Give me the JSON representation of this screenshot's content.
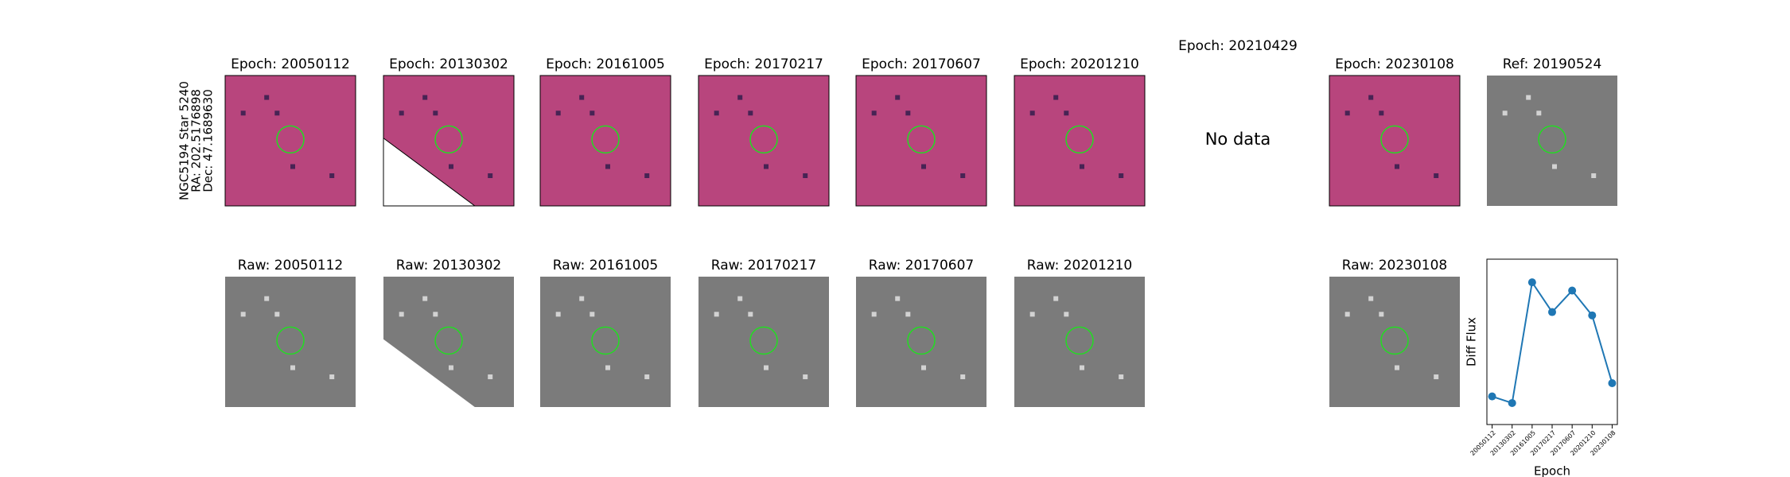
{
  "star": {
    "name": "NGC5194 Star 5240",
    "ra": "RA: 202.5176898",
    "dec": "Dec: 47.1689630"
  },
  "panels_top": [
    {
      "title": "Epoch: 20050112",
      "color": "#b8457d"
    },
    {
      "title": "Epoch: 20130302",
      "color": "#b8457d"
    },
    {
      "title": "Epoch: 20161005",
      "color": "#b8457d"
    },
    {
      "title": "Epoch: 20170217",
      "color": "#b8457d"
    },
    {
      "title": "Epoch: 20170607",
      "color": "#b8457d"
    },
    {
      "title": "Epoch: 20201210",
      "color": "#b8457d"
    },
    {
      "title": "Epoch: 20230108",
      "color": "#b8457d"
    },
    {
      "title": "Ref: 20190524",
      "color": "#7b7b7b"
    }
  ],
  "missing": {
    "title": "Epoch: 20210429",
    "note": "No data"
  },
  "panels_bottom": [
    {
      "title": "Raw: 20050112",
      "color": "#7b7b7b"
    },
    {
      "title": "Raw: 20130302",
      "color": "#7b7b7b"
    },
    {
      "title": "Raw: 20161005",
      "color": "#7b7b7b"
    },
    {
      "title": "Raw: 20170217",
      "color": "#7b7b7b"
    },
    {
      "title": "Raw: 20170607",
      "color": "#7b7b7b"
    },
    {
      "title": "Raw: 20201210",
      "color": "#7b7b7b"
    },
    {
      "title": "Raw: 20230108",
      "color": "#7b7b7b"
    }
  ],
  "chart_data": {
    "type": "line",
    "x_label": "Epoch",
    "y_label": "Diff Flux",
    "categories": [
      "20050112",
      "20130302",
      "20161005",
      "20170217",
      "20170607",
      "20201210",
      "20230108"
    ],
    "series": [
      {
        "color": "#1f77b4",
        "values": [
          0.17,
          0.13,
          0.86,
          0.68,
          0.81,
          0.66,
          0.25
        ]
      }
    ],
    "ylim": [
      0,
      1
    ]
  }
}
